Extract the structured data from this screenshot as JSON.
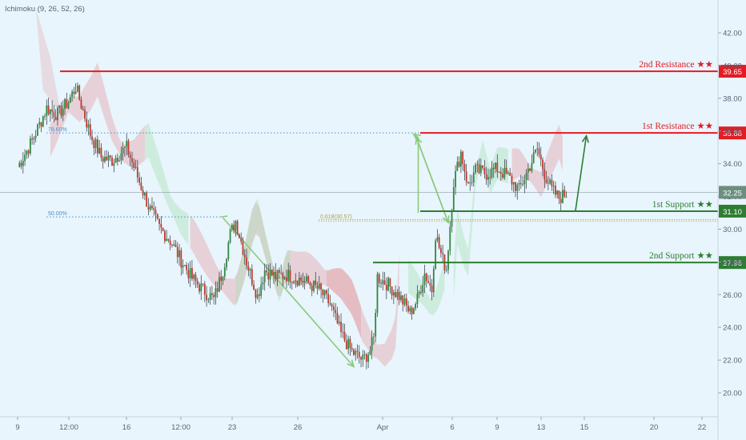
{
  "indicator": "Ichimoku (9, 26, 52, 26)",
  "colors": {
    "background": "#e8f5fc",
    "resistance": "#e31b23",
    "support": "#2e7d32",
    "arrow": "#8bc97a",
    "fib": "#4a8fd1",
    "fib618": "#b0a050",
    "candle_up": "#2f8a3c",
    "candle_down": "#c0392b",
    "cloud_red": "#e4a0a8",
    "cloud_green": "#a8e0b4"
  },
  "chart_data": {
    "type": "candlestick",
    "title": "",
    "ylim": [
      18.5,
      44.0
    ],
    "y_ticks": [
      "20.00",
      "22.00",
      "24.00",
      "26.00",
      "28.00",
      "30.00",
      "32.00",
      "34.00",
      "36.00",
      "38.00",
      "40.00",
      "42.00"
    ],
    "x_ticks": [
      "9",
      "12:00",
      "16",
      "12:00",
      "23",
      "26",
      "Apr",
      "6",
      "9",
      "13",
      "15",
      "20",
      "22"
    ],
    "grid": false,
    "current_price": "32.25",
    "horizontal_levels": [
      {
        "name": "2nd Resistance ★★",
        "value": "39.65",
        "kind": "resistance"
      },
      {
        "name": "1st Resistance ★★",
        "value": "35.88",
        "kind": "resistance"
      },
      {
        "name": "1st Support ★★",
        "value": "31.10",
        "kind": "support"
      },
      {
        "name": "2nd Support ★★",
        "value": "27.96",
        "kind": "support"
      }
    ],
    "fibonacci_labels": [
      {
        "label": "78.60%",
        "value": 35.88
      },
      {
        "label": "50.00%",
        "value": 30.75
      },
      {
        "label": "0.618(30.57)",
        "value": 30.57
      }
    ],
    "price_path": [
      [
        0,
        33.8
      ],
      [
        8,
        35.4
      ],
      [
        16,
        37.4
      ],
      [
        22,
        37.0
      ],
      [
        28,
        37.8
      ],
      [
        32,
        38.7
      ],
      [
        40,
        35.8
      ],
      [
        46,
        34.4
      ],
      [
        52,
        34.2
      ],
      [
        60,
        35.0
      ],
      [
        66,
        33.2
      ],
      [
        72,
        31.4
      ],
      [
        78,
        30.1
      ],
      [
        84,
        29.3
      ],
      [
        90,
        28.1
      ],
      [
        96,
        27.0
      ],
      [
        102,
        26.3
      ],
      [
        108,
        25.7
      ],
      [
        113,
        27.5
      ],
      [
        117,
        29.7
      ],
      [
        120,
        30.5
      ],
      [
        126,
        28.0
      ],
      [
        132,
        25.9
      ],
      [
        136,
        27.5
      ],
      [
        142,
        27.1
      ],
      [
        148,
        27.2
      ],
      [
        154,
        27.0
      ],
      [
        160,
        26.7
      ],
      [
        166,
        26.3
      ],
      [
        172,
        25.4
      ],
      [
        178,
        23.6
      ],
      [
        184,
        22.5
      ],
      [
        190,
        22.0
      ],
      [
        194,
        22.6
      ],
      [
        196,
        23.3
      ],
      [
        198,
        27.1
      ],
      [
        204,
        26.6
      ],
      [
        210,
        25.9
      ],
      [
        216,
        24.9
      ],
      [
        220,
        25.7
      ],
      [
        224,
        27.3
      ],
      [
        228,
        26.3
      ],
      [
        230,
        29.7
      ],
      [
        234,
        28.1
      ],
      [
        236,
        27.6
      ],
      [
        240,
        32.9
      ],
      [
        244,
        34.7
      ],
      [
        248,
        32.6
      ],
      [
        252,
        33.6
      ],
      [
        258,
        33.4
      ],
      [
        264,
        33.7
      ],
      [
        270,
        33.2
      ],
      [
        276,
        32.4
      ],
      [
        282,
        33.9
      ],
      [
        286,
        34.9
      ],
      [
        290,
        33.4
      ],
      [
        294,
        32.4
      ],
      [
        298,
        31.9
      ],
      [
        302,
        32.2
      ]
    ]
  }
}
